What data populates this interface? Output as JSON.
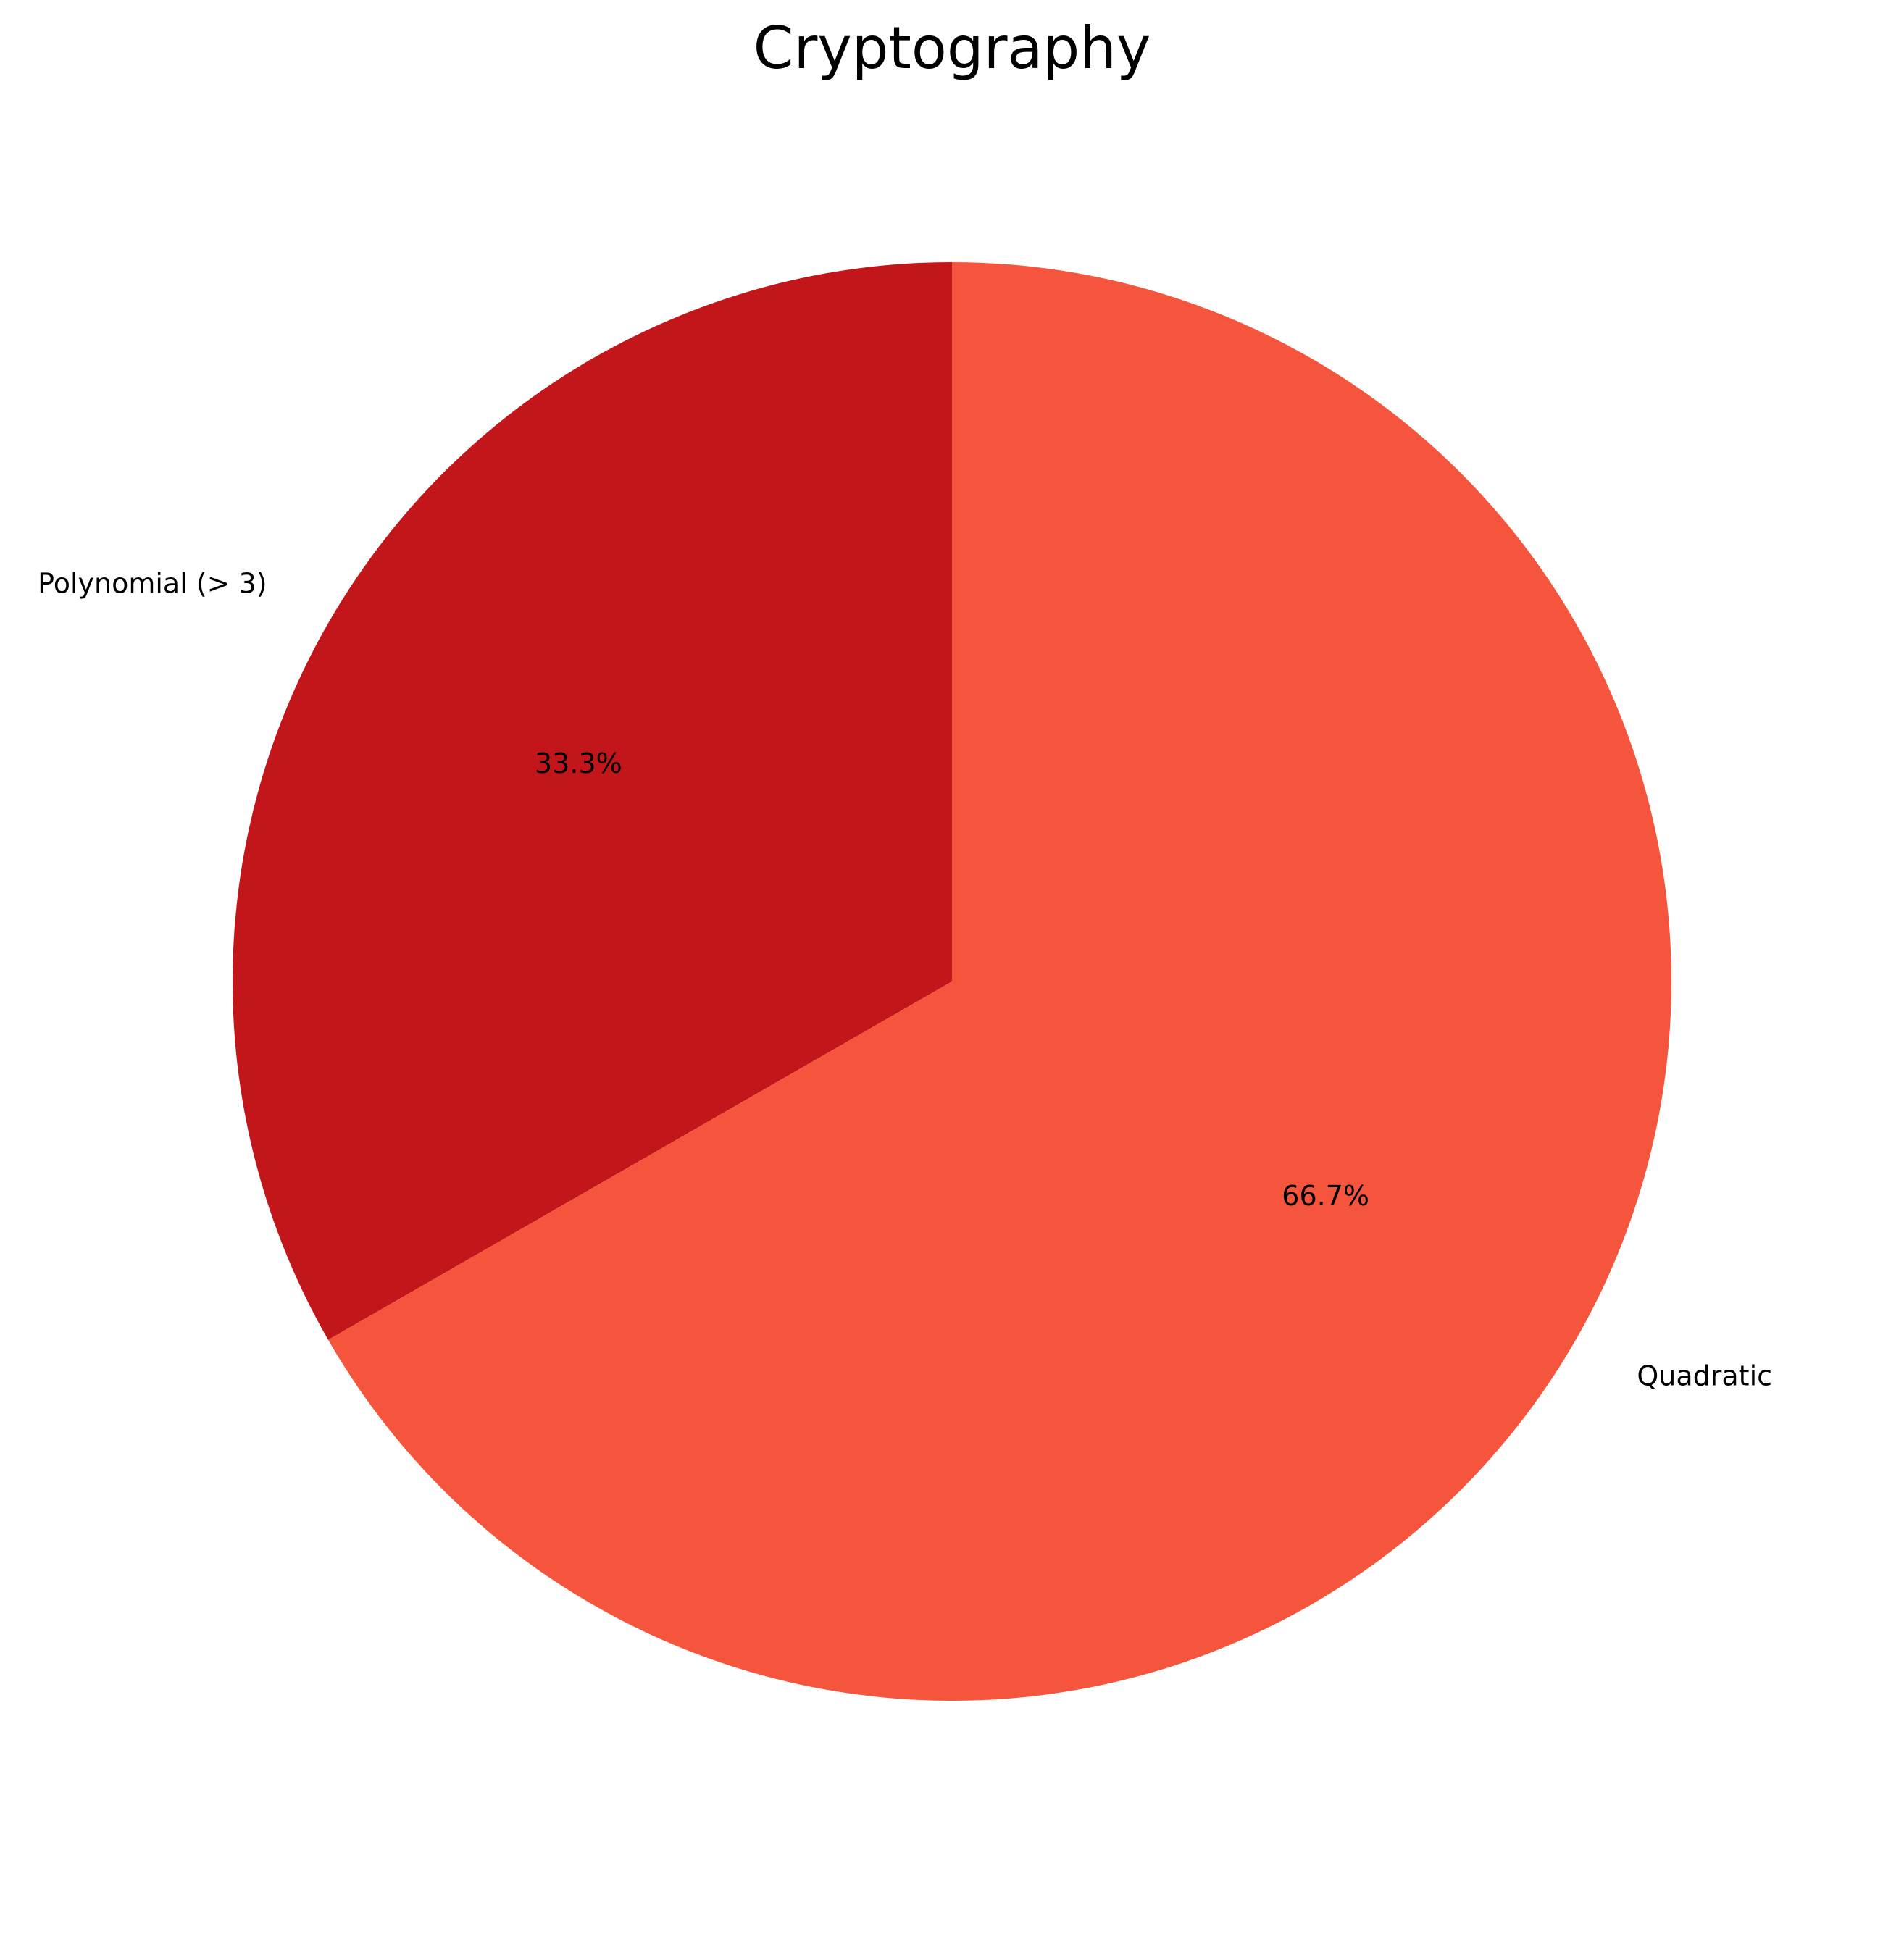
{
  "chart_data": {
    "type": "pie",
    "title": "Cryptography",
    "start_angle_deg": 90,
    "direction": "counterclockwise",
    "slices": [
      {
        "label": "Polynomial (> 3)",
        "value": 33.3,
        "pct_label": "33.3%",
        "color": "#c2161b"
      },
      {
        "label": "Quadratic",
        "value": 66.7,
        "pct_label": "66.7%",
        "color": "#f5553d"
      }
    ]
  }
}
